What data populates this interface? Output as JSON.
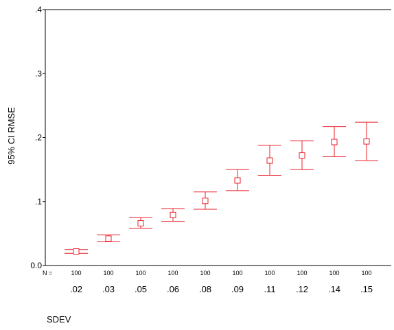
{
  "chart_data": {
    "type": "scatter",
    "error_bars": true,
    "xlabel": "SDEV",
    "ylabel": "95% CI RMSE",
    "ylim": [
      0,
      0.4
    ],
    "y_ticks": [
      ".4",
      ".3",
      ".2",
      ".1",
      "0.0"
    ],
    "n_label": "N =",
    "categories": [
      ".02",
      ".03",
      ".05",
      ".06",
      ".08",
      ".09",
      ".11",
      ".12",
      ".14",
      ".15"
    ],
    "n": [
      "100",
      "100",
      "100",
      "100",
      "100",
      "100",
      "100",
      "100",
      "100",
      "100"
    ],
    "mean": [
      0.022,
      0.042,
      0.066,
      0.079,
      0.101,
      0.133,
      0.164,
      0.172,
      0.193,
      0.194
    ],
    "lower": [
      0.019,
      0.037,
      0.058,
      0.069,
      0.088,
      0.117,
      0.141,
      0.15,
      0.17,
      0.164
    ],
    "upper": [
      0.025,
      0.048,
      0.075,
      0.089,
      0.115,
      0.15,
      0.188,
      0.195,
      0.217,
      0.224
    ],
    "grid": false,
    "colors": {
      "marker": "#e8202a",
      "axis": "#000000"
    }
  }
}
